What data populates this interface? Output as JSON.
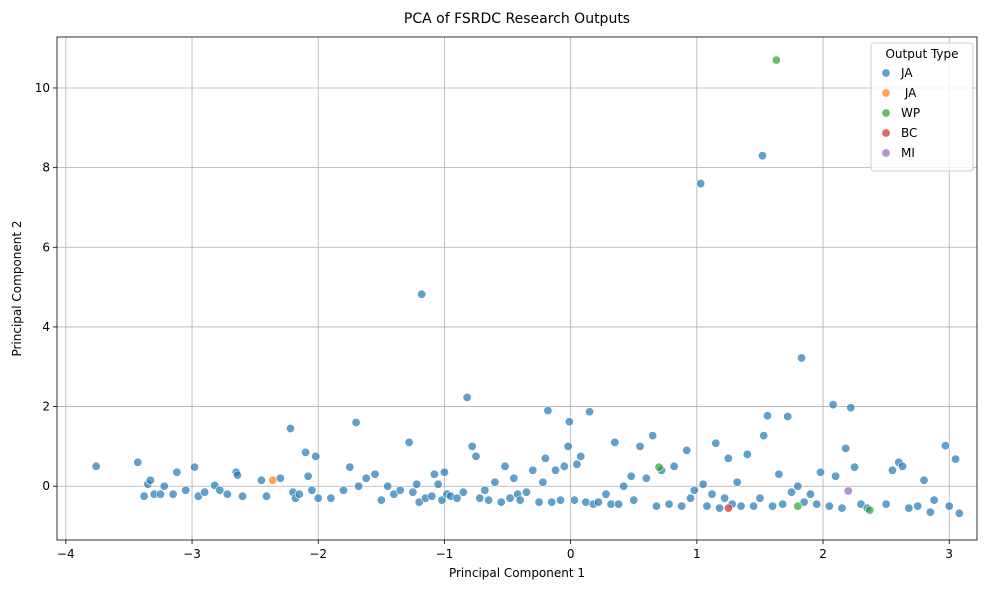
{
  "chart_data": {
    "type": "scatter",
    "title": "PCA of FSRDC Research Outputs",
    "xlabel": "Principal Component 1",
    "ylabel": "Principal Component 2",
    "xlim": [
      -4.07,
      3.22
    ],
    "ylim": [
      -1.35,
      11.28
    ],
    "xticks": [
      -4,
      -3,
      -2,
      -1,
      0,
      1,
      2,
      3
    ],
    "xtick_labels": [
      "−4",
      "−3",
      "−2",
      "−1",
      "0",
      "1",
      "2",
      "3"
    ],
    "yticks": [
      0,
      2,
      4,
      6,
      8,
      10
    ],
    "ytick_labels": [
      "0",
      "2",
      "4",
      "6",
      "8",
      "10"
    ],
    "grid": true,
    "legend": {
      "title": "Output Type",
      "position": "top-right"
    },
    "series": [
      {
        "name": "JA",
        "color": "#1f77b4",
        "points": [
          [
            -3.76,
            0.5
          ],
          [
            -3.43,
            0.6
          ],
          [
            -3.38,
            -0.25
          ],
          [
            -3.35,
            0.05
          ],
          [
            -3.33,
            0.15
          ],
          [
            -3.3,
            -0.2
          ],
          [
            -3.25,
            -0.2
          ],
          [
            -3.22,
            0.0
          ],
          [
            -3.15,
            -0.2
          ],
          [
            -3.12,
            0.35
          ],
          [
            -3.05,
            -0.1
          ],
          [
            -2.98,
            0.48
          ],
          [
            -2.95,
            -0.25
          ],
          [
            -2.9,
            -0.15
          ],
          [
            -2.82,
            0.02
          ],
          [
            -2.78,
            -0.1
          ],
          [
            -2.72,
            -0.2
          ],
          [
            -2.65,
            0.35
          ],
          [
            -2.64,
            0.28
          ],
          [
            -2.6,
            -0.25
          ],
          [
            -2.45,
            0.15
          ],
          [
            -2.41,
            -0.25
          ],
          [
            -2.3,
            0.2
          ],
          [
            -2.22,
            1.45
          ],
          [
            -2.2,
            -0.15
          ],
          [
            -2.18,
            -0.3
          ],
          [
            -2.15,
            -0.2
          ],
          [
            -2.1,
            0.85
          ],
          [
            -2.08,
            0.25
          ],
          [
            -2.05,
            -0.1
          ],
          [
            -2.02,
            0.75
          ],
          [
            -2.0,
            -0.3
          ],
          [
            -1.9,
            -0.3
          ],
          [
            -1.8,
            -0.1
          ],
          [
            -1.75,
            0.48
          ],
          [
            -1.7,
            1.6
          ],
          [
            -1.68,
            0.0
          ],
          [
            -1.62,
            0.2
          ],
          [
            -1.55,
            0.3
          ],
          [
            -1.5,
            -0.35
          ],
          [
            -1.45,
            0.0
          ],
          [
            -1.4,
            -0.2
          ],
          [
            -1.35,
            -0.1
          ],
          [
            -1.28,
            1.1
          ],
          [
            -1.25,
            -0.15
          ],
          [
            -1.22,
            0.05
          ],
          [
            -1.2,
            -0.4
          ],
          [
            -1.18,
            4.82
          ],
          [
            -1.15,
            -0.3
          ],
          [
            -1.1,
            -0.25
          ],
          [
            -1.08,
            0.3
          ],
          [
            -1.05,
            0.05
          ],
          [
            -1.02,
            -0.35
          ],
          [
            -1.0,
            0.35
          ],
          [
            -0.98,
            -0.2
          ],
          [
            -0.95,
            -0.25
          ],
          [
            -0.9,
            -0.3
          ],
          [
            -0.85,
            -0.15
          ],
          [
            -0.82,
            2.23
          ],
          [
            -0.78,
            1.0
          ],
          [
            -0.75,
            0.75
          ],
          [
            -0.72,
            -0.3
          ],
          [
            -0.68,
            -0.1
          ],
          [
            -0.65,
            -0.35
          ],
          [
            -0.6,
            0.1
          ],
          [
            -0.55,
            -0.4
          ],
          [
            -0.52,
            0.5
          ],
          [
            -0.48,
            -0.3
          ],
          [
            -0.45,
            0.2
          ],
          [
            -0.42,
            -0.2
          ],
          [
            -0.4,
            -0.35
          ],
          [
            -0.35,
            -0.15
          ],
          [
            -0.3,
            0.4
          ],
          [
            -0.25,
            -0.4
          ],
          [
            -0.22,
            0.1
          ],
          [
            -0.2,
            0.7
          ],
          [
            -0.18,
            1.9
          ],
          [
            -0.15,
            -0.4
          ],
          [
            -0.12,
            0.4
          ],
          [
            -0.08,
            -0.35
          ],
          [
            -0.05,
            0.5
          ],
          [
            -0.02,
            1.0
          ],
          [
            -0.01,
            1.62
          ],
          [
            0.03,
            -0.35
          ],
          [
            0.05,
            0.55
          ],
          [
            0.08,
            0.75
          ],
          [
            0.12,
            -0.4
          ],
          [
            0.15,
            1.87
          ],
          [
            0.18,
            -0.45
          ],
          [
            0.22,
            -0.4
          ],
          [
            0.28,
            -0.2
          ],
          [
            0.32,
            -0.45
          ],
          [
            0.35,
            1.1
          ],
          [
            0.38,
            -0.45
          ],
          [
            0.42,
            0.0
          ],
          [
            0.48,
            0.25
          ],
          [
            0.5,
            -0.35
          ],
          [
            0.55,
            1.0
          ],
          [
            0.6,
            0.2
          ],
          [
            0.65,
            1.27
          ],
          [
            0.68,
            -0.5
          ],
          [
            0.72,
            0.4
          ],
          [
            0.78,
            -0.45
          ],
          [
            0.82,
            0.5
          ],
          [
            0.88,
            -0.5
          ],
          [
            0.92,
            0.9
          ],
          [
            0.95,
            -0.3
          ],
          [
            0.98,
            -0.1
          ],
          [
            1.03,
            7.6
          ],
          [
            1.05,
            0.05
          ],
          [
            1.08,
            -0.5
          ],
          [
            1.12,
            -0.2
          ],
          [
            1.15,
            1.08
          ],
          [
            1.18,
            -0.55
          ],
          [
            1.22,
            -0.3
          ],
          [
            1.25,
            0.7
          ],
          [
            1.28,
            -0.45
          ],
          [
            1.32,
            0.1
          ],
          [
            1.35,
            -0.5
          ],
          [
            1.4,
            0.8
          ],
          [
            1.45,
            -0.5
          ],
          [
            1.5,
            -0.3
          ],
          [
            1.52,
            8.3
          ],
          [
            1.53,
            1.27
          ],
          [
            1.56,
            1.77
          ],
          [
            1.6,
            -0.5
          ],
          [
            1.65,
            0.3
          ],
          [
            1.68,
            -0.45
          ],
          [
            1.72,
            1.75
          ],
          [
            1.75,
            -0.15
          ],
          [
            1.8,
            0.0
          ],
          [
            1.83,
            3.22
          ],
          [
            1.85,
            -0.4
          ],
          [
            1.9,
            -0.2
          ],
          [
            1.95,
            -0.45
          ],
          [
            1.98,
            0.35
          ],
          [
            2.05,
            -0.5
          ],
          [
            2.08,
            2.05
          ],
          [
            2.1,
            0.25
          ],
          [
            2.15,
            -0.55
          ],
          [
            2.18,
            0.95
          ],
          [
            2.22,
            1.97
          ],
          [
            2.25,
            0.48
          ],
          [
            2.3,
            -0.45
          ],
          [
            2.35,
            -0.55
          ],
          [
            2.5,
            -0.45
          ],
          [
            2.55,
            0.4
          ],
          [
            2.6,
            0.6
          ],
          [
            2.63,
            0.5
          ],
          [
            2.68,
            -0.55
          ],
          [
            2.75,
            -0.5
          ],
          [
            2.8,
            0.15
          ],
          [
            2.85,
            -0.65
          ],
          [
            2.88,
            -0.35
          ],
          [
            2.97,
            1.02
          ],
          [
            3.0,
            -0.5
          ],
          [
            3.05,
            0.68
          ],
          [
            3.08,
            -0.68
          ]
        ]
      },
      {
        "name": " JA",
        "color": "#ff7f0e",
        "points": [
          [
            -2.36,
            0.15
          ]
        ]
      },
      {
        "name": "WP",
        "color": "#2ca02c",
        "points": [
          [
            1.63,
            10.7
          ],
          [
            0.7,
            0.48
          ],
          [
            1.8,
            -0.5
          ],
          [
            2.37,
            -0.6
          ]
        ]
      },
      {
        "name": "BC",
        "color": "#d62728",
        "points": [
          [
            1.25,
            -0.55
          ]
        ]
      },
      {
        "name": "MI",
        "color": "#9467bd",
        "points": [
          [
            2.2,
            -0.12
          ]
        ]
      }
    ]
  }
}
